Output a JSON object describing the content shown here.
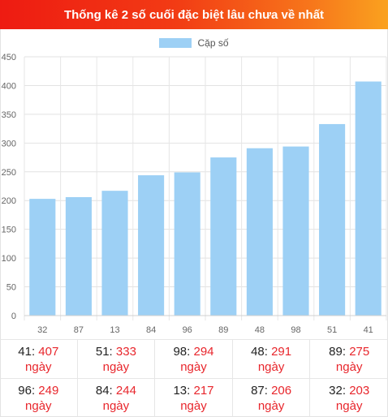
{
  "header": {
    "title": "Thống kê 2 số cuối đặc biệt lâu chưa về nhất"
  },
  "colors": {
    "header_start": "#ee1b12",
    "header_end": "#faa21f",
    "bar": "#9dd0f5",
    "count_text": "#e8262c"
  },
  "chart_data": {
    "type": "bar",
    "title": "",
    "xlabel": "",
    "ylabel": "",
    "legend": {
      "label": "Cặp số",
      "placement": "top-center"
    },
    "categories": [
      "32",
      "87",
      "13",
      "84",
      "96",
      "89",
      "48",
      "98",
      "51",
      "41"
    ],
    "values": [
      203,
      206,
      217,
      244,
      249,
      275,
      291,
      294,
      333,
      407
    ],
    "ylim": [
      0,
      450
    ],
    "yticks": [
      "0",
      "50",
      "100",
      "150",
      "200",
      "250",
      "300",
      "350",
      "400",
      "450"
    ],
    "grid": true
  },
  "table": {
    "unit": "ngày",
    "items": [
      {
        "number": "41",
        "count": "407"
      },
      {
        "number": "51",
        "count": "333"
      },
      {
        "number": "98",
        "count": "294"
      },
      {
        "number": "48",
        "count": "291"
      },
      {
        "number": "89",
        "count": "275"
      },
      {
        "number": "96",
        "count": "249"
      },
      {
        "number": "84",
        "count": "244"
      },
      {
        "number": "13",
        "count": "217"
      },
      {
        "number": "87",
        "count": "206"
      },
      {
        "number": "32",
        "count": "203"
      }
    ]
  }
}
